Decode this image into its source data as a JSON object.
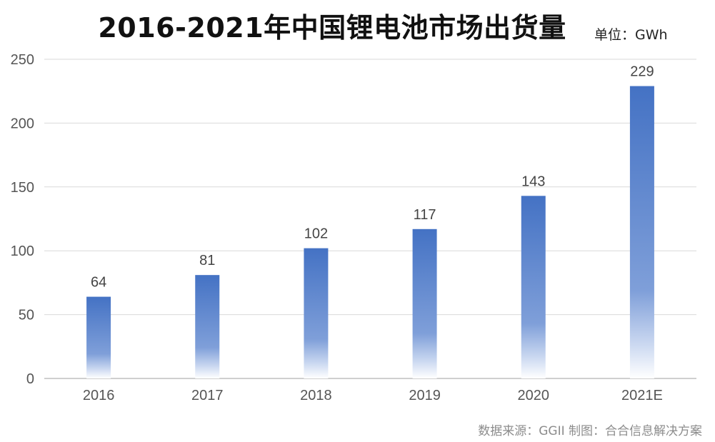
{
  "header": {
    "title": "2016-2021年中国锂电池市场出货量",
    "unit": "单位：GWh"
  },
  "footer": {
    "source": "数据来源：GGII    制图：合合信息解决方案"
  },
  "chart_data": {
    "type": "bar",
    "title": "2016-2021年中国锂电池市场出货量",
    "unit": "GWh",
    "categories": [
      "2016",
      "2017",
      "2018",
      "2019",
      "2020",
      "2021E"
    ],
    "values": [
      64,
      81,
      102,
      117,
      143,
      229
    ],
    "ylim": [
      0,
      250
    ],
    "yticks": [
      0,
      50,
      100,
      150,
      200,
      250
    ],
    "grid": true,
    "legend": "none",
    "bar_color": "#4472c4",
    "bar_fade_color": "#ffffff",
    "grid_color": "#d9d9d9",
    "axis_color": "#bfbfbf"
  }
}
